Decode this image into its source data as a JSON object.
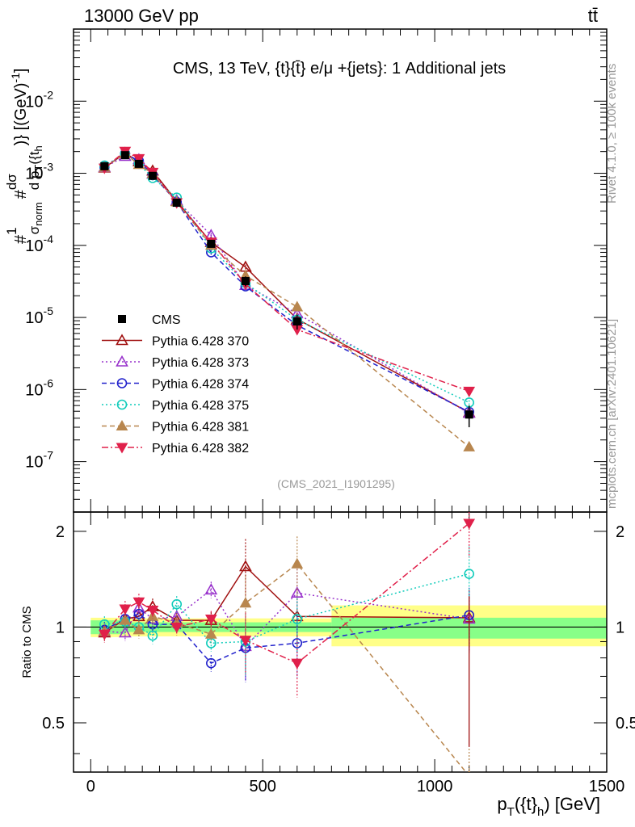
{
  "header": {
    "left": "13000 GeV pp",
    "right": "tt̄"
  },
  "side_labels": {
    "rivet": "Rivet 4.1.0, ≥ 100k events",
    "mcplots": "mcplots.cern.ch [arXiv:2401.10621]"
  },
  "chart_data": [
    {
      "panel": "main",
      "type": "line",
      "title": "CMS, 13 TeV, {t}{t̄} e/μ +{jets}: 1 Additional jets",
      "watermark": "(CMS_2021_I1901295)",
      "xlabel": "p_T({t}_h) [GeV]",
      "ylabel": "#1/σ_norm #dσ/d p_T({t}_h)} [(GeV)^-1]",
      "xlim": [
        -50,
        1500
      ],
      "ylim": [
        2e-08,
        0.1
      ],
      "yscale": "log",
      "x_ticks": [
        0,
        500,
        1000,
        1500
      ],
      "y_tick_labels": [
        "10^-7",
        "10^-6",
        "10^-5",
        "10^-4",
        "10^-3",
        "10^-2"
      ],
      "legend_position": "center-left",
      "x": [
        40,
        100,
        140,
        180,
        250,
        350,
        450,
        600,
        1100
      ],
      "data": {
        "name": "CMS",
        "values": [
          0.00125,
          0.00178,
          0.00135,
          0.00092,
          0.00039,
          0.000105,
          3.2e-05,
          8.8e-06,
          4.5e-07
        ],
        "errors": [
          5e-05,
          6e-05,
          5e-05,
          4e-05,
          2e-05,
          9e-06,
          5e-06,
          2e-06,
          1.5e-07
        ]
      },
      "series": [
        {
          "name": "Pythia 6.428 370",
          "color": "#a01010",
          "values": [
            0.00119,
            0.0019,
            0.00145,
            0.00108,
            0.00041,
            0.00011,
            5e-05,
            9.5e-06,
            4.8e-07
          ]
        },
        {
          "name": "Pythia 6.428 373",
          "color": "#9933cc",
          "values": [
            0.00121,
            0.00172,
            0.00155,
            0.00098,
            0.00042,
            0.000138,
            2.8e-05,
            1.13e-05,
            4.7e-07
          ]
        },
        {
          "name": "Pythia 6.428 374",
          "color": "#2222cc",
          "values": [
            0.00122,
            0.00188,
            0.00148,
            0.00094,
            0.0004,
            8e-05,
            2.7e-05,
            7.8e-06,
            4.9e-07
          ]
        },
        {
          "name": "Pythia 6.428 375",
          "color": "#11ccbb",
          "values": [
            0.00128,
            0.00185,
            0.00135,
            0.00086,
            0.00046,
            9.1e-05,
            3e-05,
            9.3e-06,
            6.6e-07
          ]
        },
        {
          "name": "Pythia 6.428 381",
          "color": "#b8864e",
          "values": [
            0.00121,
            0.00186,
            0.00132,
            0.00099,
            0.0004,
            0.0001,
            3.8e-05,
            1.4e-05,
            1.6e-07
          ]
        },
        {
          "name": "Pythia 6.428 382",
          "color": "#e0204a",
          "values": [
            0.00118,
            0.00202,
            0.0016,
            0.00103,
            0.00039,
            0.000111,
            2.9e-05,
            6.8e-06,
            9.5e-07
          ]
        }
      ]
    },
    {
      "panel": "ratio",
      "type": "line",
      "ylabel": "Ratio to CMS",
      "xlim": [
        -50,
        1500
      ],
      "ylim": [
        0.35,
        2.3
      ],
      "yscale": "log",
      "y_ticks": [
        0.5,
        1,
        2
      ],
      "y_tick_labels": [
        "0.5",
        "1",
        "2"
      ],
      "bands": {
        "green": {
          "edges": [
            0,
            100,
            700,
            1500
          ],
          "lo": [
            0.95,
            0.965,
            0.92
          ],
          "hi": [
            1.05,
            1.035,
            1.07
          ]
        },
        "yellow": {
          "edges": [
            0,
            100,
            700,
            1500
          ],
          "lo": [
            0.93,
            0.935,
            0.87
          ],
          "hi": [
            1.07,
            1.065,
            1.17
          ]
        }
      },
      "x": [
        40,
        100,
        140,
        180,
        250,
        350,
        450,
        600,
        1100
      ],
      "series": [
        {
          "name": "Pythia 6.428 370",
          "values": [
            0.96,
            1.06,
            1.08,
            1.16,
            1.05,
            1.05,
            1.55,
            1.08,
            1.07
          ]
        },
        {
          "name": "Pythia 6.428 373",
          "values": [
            0.97,
            0.96,
            1.15,
            1.06,
            1.08,
            1.31,
            0.87,
            1.28,
            1.06
          ]
        },
        {
          "name": "Pythia 6.428 374",
          "values": [
            0.98,
            1.06,
            1.1,
            1.02,
            1.02,
            0.77,
            0.86,
            0.89,
            1.09
          ]
        },
        {
          "name": "Pythia 6.428 375",
          "values": [
            1.02,
            1.04,
            1.0,
            0.94,
            1.18,
            0.89,
            0.9,
            1.06,
            1.47
          ]
        },
        {
          "name": "Pythia 6.428 381",
          "values": [
            0.97,
            1.05,
            0.98,
            1.08,
            1.03,
            0.95,
            1.19,
            1.58,
            0.34
          ]
        },
        {
          "name": "Pythia 6.428 382",
          "values": [
            0.95,
            1.14,
            1.2,
            1.13,
            1.0,
            1.06,
            0.91,
            0.77,
            2.12
          ]
        }
      ]
    }
  ]
}
